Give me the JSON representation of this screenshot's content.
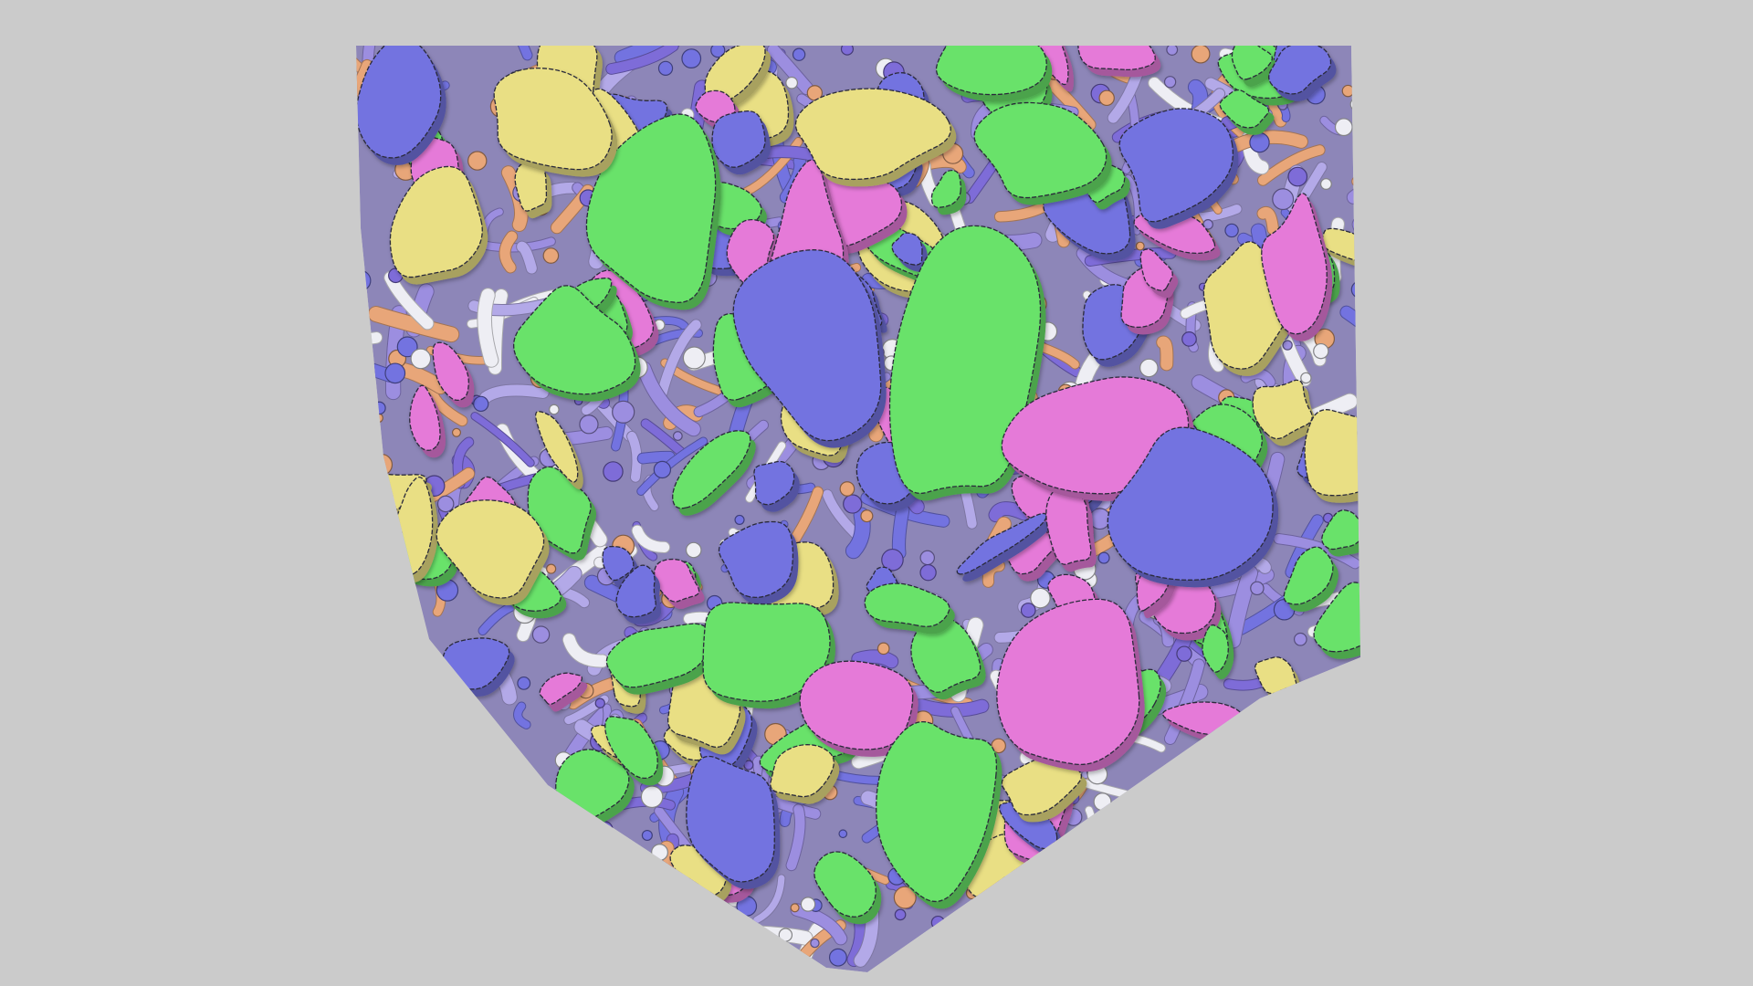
{
  "scene": {
    "description_free": true,
    "background_color": "#cbcbcb",
    "colors": {
      "green": "#69e26a",
      "pink": "#e57ad8",
      "blue": "#7373e0",
      "yellow": "#e9df84",
      "orange": "#e8a679",
      "white": "#eeeef4",
      "lavender": "#9c8ee0",
      "purple": "#7e6cd8"
    }
  }
}
